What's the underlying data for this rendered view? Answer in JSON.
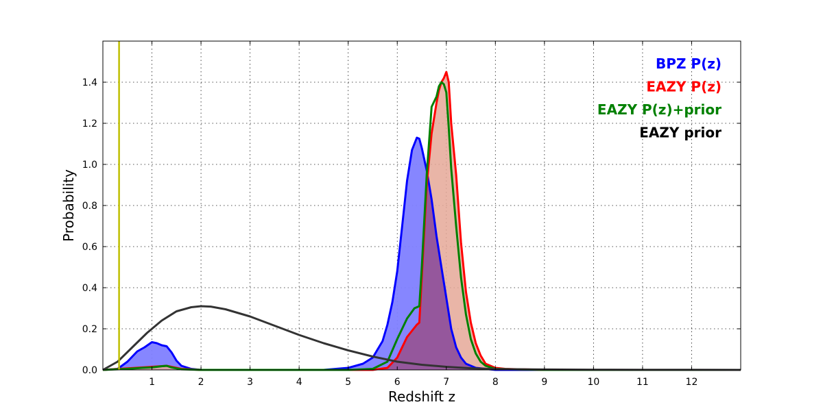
{
  "chart_data": {
    "type": "area",
    "title": "",
    "xlabel": "Redshift z",
    "ylabel": "Probability",
    "xlim": [
      0,
      13
    ],
    "ylim": [
      0,
      1.6
    ],
    "x_ticks": [
      1,
      2,
      3,
      4,
      5,
      6,
      7,
      8,
      9,
      10,
      11,
      12
    ],
    "y_ticks": [
      0.0,
      0.2,
      0.4,
      0.6,
      0.8,
      1.0,
      1.2,
      1.4
    ],
    "y_tick_labels": [
      "0.0",
      "0.2",
      "0.4",
      "0.6",
      "0.8",
      "1.0",
      "1.2",
      "1.4"
    ],
    "grid": true,
    "legend_position": "top-right",
    "vertical_line": {
      "x": 0.33,
      "color": "#bfbf00"
    },
    "series": [
      {
        "name": "BPZ P(z)",
        "color": "#0000ff",
        "fill": "#8080ff",
        "x": [
          0.0,
          0.3,
          0.5,
          0.7,
          0.85,
          1.0,
          1.1,
          1.2,
          1.3,
          1.4,
          1.5,
          1.6,
          1.8,
          2.0,
          3.0,
          4.0,
          4.5,
          5.0,
          5.3,
          5.5,
          5.7,
          5.8,
          5.9,
          6.0,
          6.1,
          6.2,
          6.3,
          6.4,
          6.45,
          6.5,
          6.6,
          6.7,
          6.8,
          6.9,
          7.0,
          7.1,
          7.2,
          7.3,
          7.4,
          7.6,
          7.8,
          8.0,
          9.0,
          10.0,
          12.0,
          13.0
        ],
        "y": [
          0.0,
          0.005,
          0.04,
          0.09,
          0.11,
          0.135,
          0.13,
          0.12,
          0.115,
          0.085,
          0.045,
          0.02,
          0.005,
          0.0,
          0.0,
          0.0,
          0.0,
          0.01,
          0.03,
          0.06,
          0.14,
          0.22,
          0.33,
          0.48,
          0.7,
          0.92,
          1.07,
          1.13,
          1.125,
          1.08,
          0.97,
          0.83,
          0.65,
          0.5,
          0.35,
          0.2,
          0.11,
          0.06,
          0.03,
          0.01,
          0.005,
          0.0,
          0.0,
          0.0,
          0.0,
          0.0
        ]
      },
      {
        "name": "EAZY P(z)",
        "color": "#ff0000",
        "fill": "#e5a898",
        "x": [
          0.0,
          1.0,
          1.3,
          1.6,
          2.0,
          5.0,
          5.5,
          5.8,
          6.0,
          6.2,
          6.4,
          6.45,
          6.5,
          6.6,
          6.7,
          6.8,
          6.85,
          6.9,
          6.95,
          7.0,
          7.05,
          7.1,
          7.2,
          7.3,
          7.4,
          7.5,
          7.6,
          7.7,
          7.8,
          8.0,
          8.2,
          9.0,
          13.0
        ],
        "y": [
          0.0,
          0.015,
          0.02,
          0.005,
          0.0,
          0.0,
          0.0,
          0.01,
          0.06,
          0.16,
          0.22,
          0.23,
          0.45,
          0.9,
          1.15,
          1.3,
          1.36,
          1.4,
          1.42,
          1.45,
          1.4,
          1.2,
          0.95,
          0.62,
          0.38,
          0.23,
          0.13,
          0.07,
          0.03,
          0.01,
          0.005,
          0.0,
          0.0
        ]
      },
      {
        "name": "EAZY P(z)+prior",
        "color": "#008000",
        "fill": "none",
        "x": [
          0.0,
          0.5,
          0.8,
          1.0,
          1.2,
          1.3,
          1.4,
          1.6,
          2.0,
          5.0,
          5.5,
          5.8,
          6.0,
          6.2,
          6.35,
          6.45,
          6.5,
          6.6,
          6.7,
          6.8,
          6.85,
          6.9,
          6.95,
          7.0,
          7.05,
          7.1,
          7.2,
          7.3,
          7.4,
          7.5,
          7.6,
          7.7,
          7.8,
          8.0,
          9.0,
          13.0
        ],
        "y": [
          0.0,
          0.005,
          0.01,
          0.012,
          0.018,
          0.02,
          0.012,
          0.003,
          0.0,
          0.0,
          0.005,
          0.04,
          0.15,
          0.25,
          0.3,
          0.31,
          0.5,
          0.95,
          1.28,
          1.33,
          1.38,
          1.4,
          1.39,
          1.35,
          1.18,
          0.98,
          0.7,
          0.45,
          0.27,
          0.15,
          0.08,
          0.04,
          0.02,
          0.005,
          0.0,
          0.0
        ]
      },
      {
        "name": "EAZY prior",
        "color": "#333333",
        "fill": "none",
        "x": [
          0.0,
          0.3,
          0.6,
          0.9,
          1.2,
          1.5,
          1.8,
          2.0,
          2.2,
          2.5,
          3.0,
          3.5,
          4.0,
          4.5,
          5.0,
          5.5,
          6.0,
          6.5,
          7.0,
          7.5,
          8.0,
          9.0,
          10.0,
          11.0,
          12.0,
          13.0
        ],
        "y": [
          0.0,
          0.04,
          0.11,
          0.18,
          0.24,
          0.285,
          0.305,
          0.31,
          0.308,
          0.295,
          0.26,
          0.215,
          0.17,
          0.13,
          0.095,
          0.065,
          0.04,
          0.025,
          0.015,
          0.008,
          0.004,
          0.002,
          0.001,
          0.0005,
          0.0002,
          0.0
        ]
      }
    ]
  }
}
